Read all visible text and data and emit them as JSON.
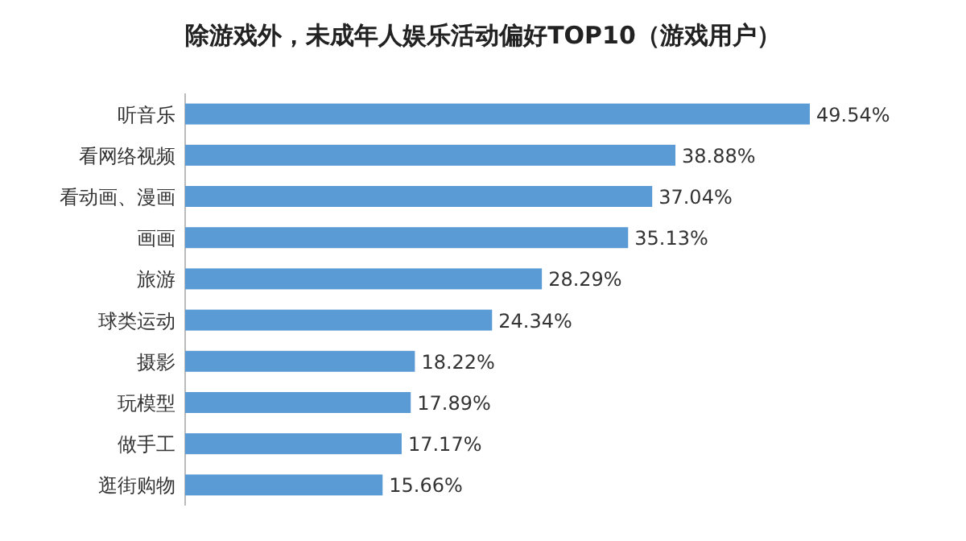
{
  "chart_data": {
    "type": "bar",
    "orientation": "horizontal",
    "title": "除游戏外，未成年人娱乐活动偏好TOP10（游戏用户）",
    "categories": [
      "听音乐",
      "看网络视频",
      "看动画、漫画",
      "画画",
      "旅游",
      "球类运动",
      "摄影",
      "玩模型",
      "做手工",
      "逛街购物"
    ],
    "values": [
      49.54,
      38.88,
      37.04,
      35.13,
      28.29,
      24.34,
      18.22,
      17.89,
      17.17,
      15.66
    ],
    "value_labels": [
      "49.54%",
      "38.88%",
      "37.04%",
      "35.13%",
      "28.29%",
      "24.34%",
      "18.22%",
      "17.89%",
      "17.17%",
      "15.66%"
    ],
    "color": "#5b9bd5"
  }
}
